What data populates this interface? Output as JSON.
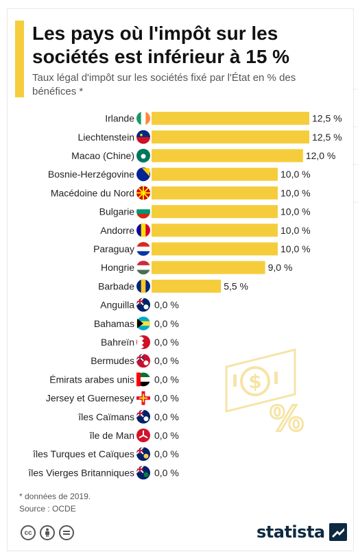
{
  "header": {
    "title": "Les pays où l'impôt sur les sociétés est inférieur à 15 %",
    "subtitle": "Taux légal d'impôt sur les sociétés fixé par l'État en % des bénéfices *"
  },
  "footer": {
    "note": "* données de 2019.",
    "source": "Source : OCDE",
    "logo": "statista",
    "license_icons": [
      "cc-icon",
      "by-person-icon",
      "nd-equals-icon"
    ]
  },
  "colors": {
    "bar": "#f5cd3c",
    "accent": "#f5cd3c",
    "logo": "#0d2a42"
  },
  "chart_data": {
    "type": "bar",
    "orientation": "horizontal",
    "categories": [
      "Irlande",
      "Liechtenstein",
      "Macao (Chine)",
      "Bosnie-Herzégovine",
      "Macédoine du Nord",
      "Bulgarie",
      "Andorre",
      "Paraguay",
      "Hongrie",
      "Barbade",
      "Anguilla",
      "Bahamas",
      "Bahreïn",
      "Bermudes",
      "Émirats arabes unis",
      "Jersey et Guernesey",
      "îles Caïmans",
      "île de Man",
      "îles Turques et Caïques",
      "îles Vierges Britanniques"
    ],
    "values": [
      12.5,
      12.5,
      12.0,
      10.0,
      10.0,
      10.0,
      10.0,
      10.0,
      9.0,
      5.5,
      0,
      0,
      0,
      0,
      0,
      0,
      0,
      0,
      0,
      0
    ],
    "value_labels": [
      "12,5 %",
      "12,5 %",
      "12,0 %",
      "10,0 %",
      "10,0 %",
      "10,0 %",
      "10,0 %",
      "10,0 %",
      "9,0 %",
      "5,5 %",
      "0,0 %",
      "0,0 %",
      "0,0 %",
      "0,0 %",
      "0,0 %",
      "0,0 %",
      "0,0 %",
      "0,0 %",
      "0,0 %",
      "0,0 %"
    ],
    "flag_icons": [
      "ireland-flag-icon",
      "liechtenstein-flag-icon",
      "macao-flag-icon",
      "bosnia-flag-icon",
      "north-macedonia-flag-icon",
      "bulgaria-flag-icon",
      "andorra-flag-icon",
      "paraguay-flag-icon",
      "hungary-flag-icon",
      "barbados-flag-icon",
      "anguilla-flag-icon",
      "bahamas-flag-icon",
      "bahrain-flag-icon",
      "bermuda-flag-icon",
      "uae-flag-icon",
      "jersey-guernsey-flag-icon",
      "cayman-islands-flag-icon",
      "isle-of-man-flag-icon",
      "turks-caicos-flag-icon",
      "british-virgin-islands-flag-icon"
    ],
    "xlim": [
      0,
      12.5
    ],
    "grid": false,
    "legend": "none"
  }
}
